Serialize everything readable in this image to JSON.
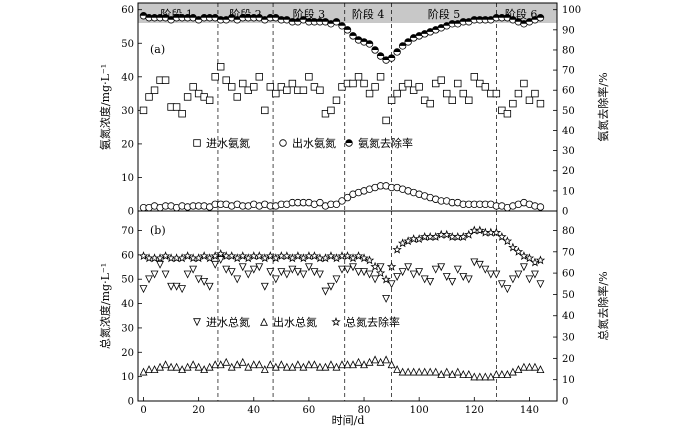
{
  "chart_data": [
    {
      "id": "a",
      "type": "scatter",
      "panel_label": "(a)",
      "xlim": [
        -2,
        150
      ],
      "ylim_left": [
        0,
        62
      ],
      "ylim_right": [
        0,
        103.33
      ],
      "yticks_left": [
        0,
        10,
        20,
        30,
        40,
        50,
        60
      ],
      "yticks_right": [
        0,
        10,
        20,
        30,
        40,
        50,
        60,
        70,
        80,
        90,
        100
      ],
      "ylabel_left": "氨氮浓度/mg·L⁻¹",
      "ylabel_right": "氨氮去除率/%",
      "stage_boundaries": [
        27,
        47,
        73,
        90,
        128
      ],
      "stages": [
        {
          "label": "阶段 1",
          "x": 12
        },
        {
          "label": "阶段 2",
          "x": 37
        },
        {
          "label": "阶段 3",
          "x": 60
        },
        {
          "label": "阶段 4",
          "x": 81.5
        },
        {
          "label": "阶段 5",
          "x": 109
        },
        {
          "label": "阶段 6",
          "x": 137
        }
      ],
      "legend": [
        {
          "label": "进水氨氮",
          "marker": "square"
        },
        {
          "label": "出水氨氮",
          "marker": "circle"
        },
        {
          "label": "氨氮去除率",
          "marker": "half-circle"
        }
      ],
      "series": [
        {
          "name": "进水氨氮",
          "axis": "left",
          "marker": "square",
          "x": [
            0,
            2,
            4,
            6,
            8,
            10,
            12,
            14,
            16,
            18,
            20,
            22,
            24,
            26,
            28,
            30,
            32,
            34,
            36,
            38,
            40,
            42,
            44,
            46,
            48,
            50,
            52,
            54,
            56,
            58,
            60,
            62,
            64,
            66,
            68,
            70,
            72,
            74,
            76,
            78,
            80,
            82,
            84,
            86,
            88,
            90,
            92,
            94,
            96,
            98,
            100,
            102,
            104,
            106,
            108,
            110,
            112,
            114,
            116,
            118,
            120,
            122,
            124,
            126,
            128,
            130,
            132,
            134,
            136,
            138,
            140,
            142,
            144
          ],
          "y": [
            30,
            34,
            36,
            39,
            39,
            31,
            31,
            29,
            34,
            37,
            35,
            34,
            33,
            40,
            43,
            39,
            37,
            34,
            38,
            36,
            37,
            40,
            30,
            37,
            35,
            37,
            36,
            38,
            36,
            36,
            40,
            37,
            36,
            29,
            30,
            33,
            37,
            38,
            38,
            40,
            38,
            35,
            37,
            40,
            27,
            33,
            35,
            37,
            38,
            36,
            37,
            33,
            32,
            38,
            39,
            35,
            33,
            38,
            35,
            33,
            40,
            38,
            37,
            35,
            35,
            30,
            29,
            32,
            35,
            38,
            33,
            35,
            32
          ]
        },
        {
          "name": "出水氨氮",
          "axis": "left",
          "marker": "circle",
          "x": [
            0,
            2,
            4,
            6,
            8,
            10,
            12,
            14,
            16,
            18,
            20,
            22,
            24,
            26,
            28,
            30,
            32,
            34,
            36,
            38,
            40,
            42,
            44,
            46,
            48,
            50,
            52,
            54,
            56,
            58,
            60,
            62,
            64,
            66,
            68,
            70,
            72,
            74,
            76,
            78,
            80,
            82,
            84,
            86,
            88,
            90,
            92,
            94,
            96,
            98,
            100,
            102,
            104,
            106,
            108,
            110,
            112,
            114,
            116,
            118,
            120,
            122,
            124,
            126,
            128,
            130,
            132,
            134,
            136,
            138,
            140,
            142,
            144
          ],
          "y": [
            1,
            1,
            1.5,
            1,
            1.5,
            1.5,
            1,
            1.5,
            1.2,
            1.5,
            1.5,
            1.5,
            1.2,
            2,
            2,
            2,
            1.5,
            2,
            1.5,
            1.5,
            2,
            1.5,
            2,
            1.5,
            1.5,
            2,
            2,
            2.5,
            2.5,
            2.5,
            2.5,
            2,
            2.5,
            1.5,
            2,
            2,
            3,
            4,
            5,
            5.5,
            6,
            6.5,
            7,
            7.5,
            7.5,
            7,
            7,
            6.5,
            6,
            5.5,
            5,
            4.5,
            4,
            3.5,
            3,
            3,
            2.5,
            2.5,
            2,
            2,
            2,
            2,
            2,
            2,
            1.5,
            1.5,
            1,
            1.5,
            2,
            2.5,
            2,
            1.5,
            1.2
          ]
        },
        {
          "name": "氨氮去除率",
          "axis": "right",
          "marker": "half-circle",
          "x": [
            0,
            2,
            4,
            6,
            8,
            10,
            12,
            14,
            16,
            18,
            20,
            22,
            24,
            26,
            28,
            30,
            32,
            34,
            36,
            38,
            40,
            42,
            44,
            46,
            48,
            50,
            52,
            54,
            56,
            58,
            60,
            62,
            64,
            66,
            68,
            70,
            72,
            74,
            76,
            78,
            80,
            82,
            84,
            86,
            88,
            90,
            92,
            94,
            96,
            98,
            100,
            102,
            104,
            106,
            108,
            110,
            112,
            114,
            116,
            118,
            120,
            122,
            124,
            126,
            128,
            130,
            132,
            134,
            136,
            138,
            140,
            142,
            144
          ],
          "y": [
            97,
            96,
            96,
            96,
            96,
            95,
            96,
            96,
            96,
            96,
            95,
            96,
            96,
            96,
            95,
            95,
            96,
            95,
            96,
            96,
            96,
            96,
            95,
            96,
            96,
            95,
            95,
            94,
            94,
            95,
            94,
            94,
            94,
            94,
            93,
            94,
            92,
            90,
            87,
            85,
            84,
            83,
            80,
            77,
            75,
            76,
            79,
            82,
            84,
            86,
            87,
            88,
            89,
            90,
            91,
            92,
            93,
            93,
            94,
            94,
            95,
            95,
            95,
            95,
            96,
            96,
            96,
            95,
            94,
            93,
            94,
            95,
            96
          ]
        }
      ]
    },
    {
      "id": "b",
      "type": "scatter",
      "panel_label": "(b)",
      "xlim": [
        -2,
        150
      ],
      "ylim_left": [
        0,
        78
      ],
      "ylim_right": [
        0,
        89.14
      ],
      "yticks_left": [
        0,
        10,
        20,
        30,
        40,
        50,
        60,
        70
      ],
      "yticks_right": [
        0,
        10,
        20,
        30,
        40,
        50,
        60,
        70,
        80
      ],
      "xticks": [
        0,
        20,
        40,
        60,
        80,
        100,
        120,
        140
      ],
      "xlabel": "时间/d",
      "ylabel_left": "总氮浓度/mg·L⁻¹",
      "ylabel_right": "总氮去除率/%",
      "stage_boundaries": [
        27,
        47,
        73,
        90,
        128
      ],
      "legend": [
        {
          "label": "进水总氮",
          "marker": "triangle-down"
        },
        {
          "label": "出水总氮",
          "marker": "triangle-up"
        },
        {
          "label": "总氮去除率",
          "marker": "star"
        }
      ],
      "series": [
        {
          "name": "进水总氮",
          "axis": "left",
          "marker": "triangle-down",
          "x": [
            0,
            2,
            4,
            6,
            8,
            10,
            12,
            14,
            16,
            18,
            20,
            22,
            24,
            26,
            28,
            30,
            32,
            34,
            36,
            38,
            40,
            42,
            44,
            46,
            48,
            50,
            52,
            54,
            56,
            58,
            60,
            62,
            64,
            66,
            68,
            70,
            72,
            74,
            76,
            78,
            80,
            82,
            84,
            86,
            88,
            90,
            92,
            94,
            96,
            98,
            100,
            102,
            104,
            106,
            108,
            110,
            112,
            114,
            116,
            118,
            120,
            122,
            124,
            126,
            128,
            130,
            132,
            134,
            136,
            138,
            140,
            142,
            144
          ],
          "y": [
            46,
            50,
            52,
            56,
            52,
            47,
            47,
            46,
            52,
            54,
            50,
            49,
            47,
            56,
            58,
            54,
            53,
            50,
            55,
            52,
            54,
            55,
            47,
            53,
            50,
            53,
            52,
            54,
            53,
            52,
            55,
            53,
            52,
            45,
            47,
            50,
            54,
            54,
            55,
            53,
            53,
            52,
            50,
            55,
            42,
            48,
            51,
            53,
            55,
            52,
            53,
            50,
            49,
            54,
            55,
            51,
            49,
            54,
            51,
            50,
            57,
            56,
            54,
            52,
            52,
            48,
            46,
            50,
            52,
            55,
            50,
            52,
            48
          ]
        },
        {
          "name": "出水总氮",
          "axis": "left",
          "marker": "triangle-up",
          "x": [
            0,
            2,
            4,
            6,
            8,
            10,
            12,
            14,
            16,
            18,
            20,
            22,
            24,
            26,
            28,
            30,
            32,
            34,
            36,
            38,
            40,
            42,
            44,
            46,
            48,
            50,
            52,
            54,
            56,
            58,
            60,
            62,
            64,
            66,
            68,
            70,
            72,
            74,
            76,
            78,
            80,
            82,
            84,
            86,
            88,
            90,
            92,
            94,
            96,
            98,
            100,
            102,
            104,
            106,
            108,
            110,
            112,
            114,
            116,
            118,
            120,
            122,
            124,
            126,
            128,
            130,
            132,
            134,
            136,
            138,
            140,
            142,
            144
          ],
          "y": [
            12,
            13,
            13,
            14,
            15,
            14,
            14,
            13,
            14,
            15,
            14,
            13,
            14,
            15,
            15,
            16,
            14,
            15,
            16,
            14,
            15,
            15,
            13,
            15,
            14,
            15,
            14,
            14,
            15,
            14,
            15,
            15,
            14,
            14,
            15,
            14,
            15,
            15,
            15,
            16,
            15,
            16,
            17,
            16,
            17,
            15,
            13,
            12,
            12,
            12,
            12,
            12,
            12,
            12,
            11,
            12,
            11,
            12,
            11,
            11,
            10,
            10,
            10,
            10,
            11,
            11,
            11,
            12,
            13,
            14,
            14,
            14,
            13
          ]
        },
        {
          "name": "总氮去除率",
          "axis": "right",
          "marker": "star",
          "x": [
            0,
            2,
            4,
            6,
            8,
            10,
            12,
            14,
            16,
            18,
            20,
            22,
            24,
            26,
            28,
            30,
            32,
            34,
            36,
            38,
            40,
            42,
            44,
            46,
            48,
            50,
            52,
            54,
            56,
            58,
            60,
            62,
            64,
            66,
            68,
            70,
            72,
            74,
            76,
            78,
            80,
            82,
            84,
            86,
            88,
            90,
            92,
            94,
            96,
            98,
            100,
            102,
            104,
            106,
            108,
            110,
            112,
            114,
            116,
            118,
            120,
            122,
            124,
            126,
            128,
            130,
            132,
            134,
            136,
            138,
            140,
            142,
            144
          ],
          "y": [
            68,
            67,
            67,
            67,
            68,
            67,
            67,
            67,
            68,
            67,
            67,
            68,
            67,
            68,
            69,
            68,
            68,
            67,
            68,
            67,
            68,
            68,
            67,
            68,
            67,
            68,
            68,
            67,
            68,
            67,
            68,
            68,
            67,
            67,
            68,
            67,
            68,
            68,
            67,
            68,
            67,
            66,
            63,
            60,
            57,
            63,
            71,
            74,
            75,
            76,
            76,
            77,
            77,
            77,
            78,
            78,
            77,
            77,
            77,
            78,
            80,
            80,
            79,
            79,
            79,
            77,
            75,
            72,
            70,
            68,
            67,
            65,
            66
          ]
        }
      ]
    }
  ]
}
